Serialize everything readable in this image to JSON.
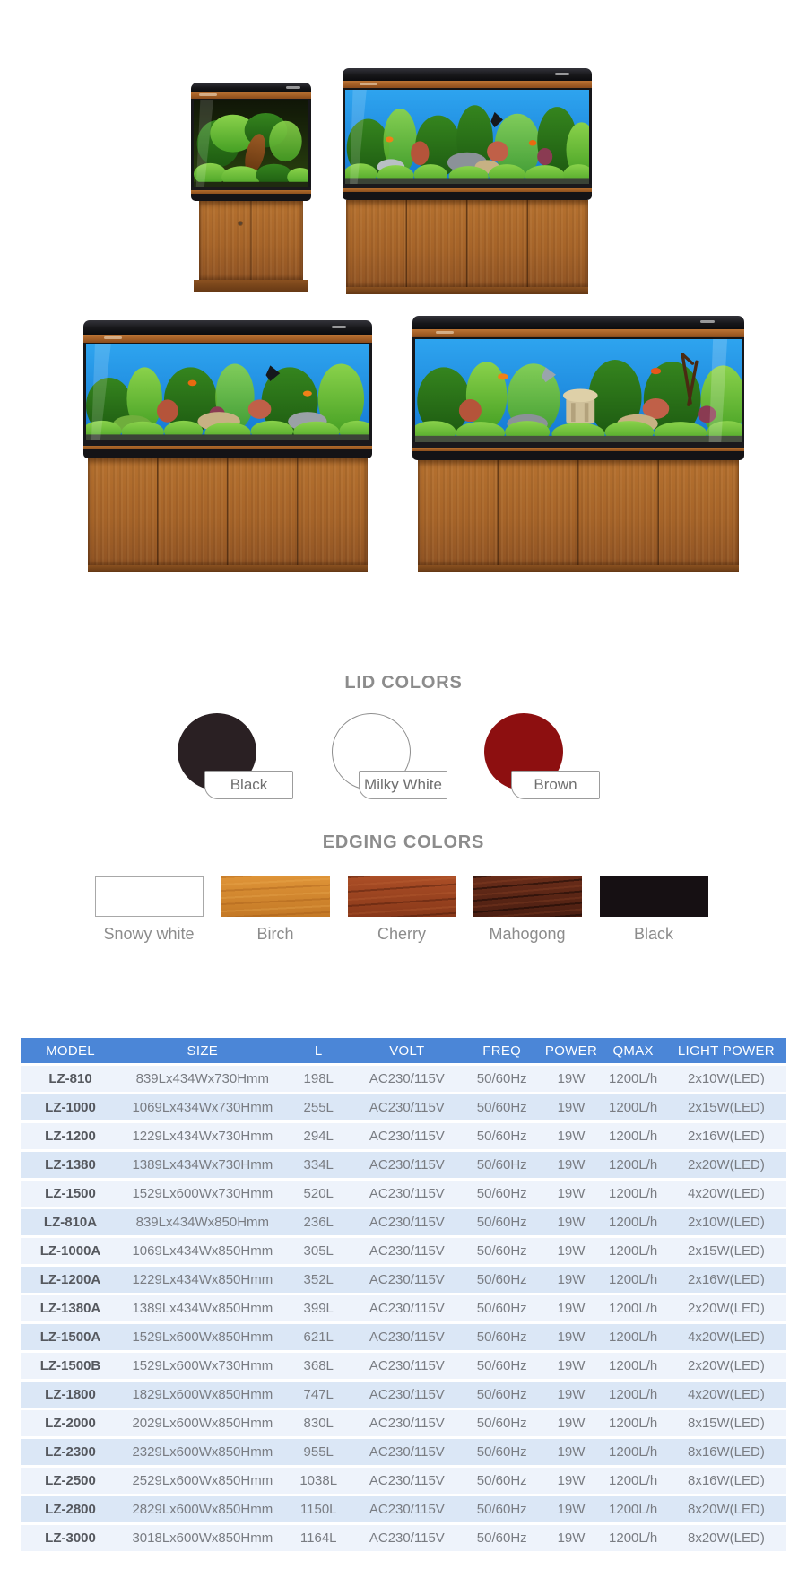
{
  "lid_colors": {
    "title": "LID COLORS",
    "items": [
      {
        "label": "Black",
        "hex": "#2a2023"
      },
      {
        "label": "Milky White",
        "hex": "#ffffff"
      },
      {
        "label": "Brown",
        "hex": "#8d0f10"
      }
    ]
  },
  "edging_colors": {
    "title": "EDGING COLORS",
    "items": [
      {
        "label": "Snowy white",
        "hex": "#ffffff"
      },
      {
        "label": "Birch",
        "hex": "#d4862c"
      },
      {
        "label": "Cherry",
        "hex": "#a3451f"
      },
      {
        "label": "Mahogong",
        "hex": "#662a18"
      },
      {
        "label": "Black",
        "hex": "#161013"
      }
    ]
  },
  "spec_table": {
    "colors": {
      "header_bg": "#4b86d7",
      "row_light": "#eef3fb",
      "row_alt": "#dbe7f6"
    },
    "columns": [
      "MODEL",
      "SIZE",
      "L",
      "VOLT",
      "FREQ",
      "POWER",
      "QMAX",
      "LIGHT POWER"
    ],
    "rows": [
      [
        "LZ-810",
        "839Lx434Wx730Hmm",
        "198L",
        "AC230/115V",
        "50/60Hz",
        "19W",
        "1200L/h",
        "2x10W(LED)"
      ],
      [
        "LZ-1000",
        "1069Lx434Wx730Hmm",
        "255L",
        "AC230/115V",
        "50/60Hz",
        "19W",
        "1200L/h",
        "2x15W(LED)"
      ],
      [
        "LZ-1200",
        "1229Lx434Wx730Hmm",
        "294L",
        "AC230/115V",
        "50/60Hz",
        "19W",
        "1200L/h",
        "2x16W(LED)"
      ],
      [
        "LZ-1380",
        "1389Lx434Wx730Hmm",
        "334L",
        "AC230/115V",
        "50/60Hz",
        "19W",
        "1200L/h",
        "2x20W(LED)"
      ],
      [
        "LZ-1500",
        "1529Lx600Wx730Hmm",
        "520L",
        "AC230/115V",
        "50/60Hz",
        "19W",
        "1200L/h",
        "4x20W(LED)"
      ],
      [
        "LZ-810A",
        "839Lx434Wx850Hmm",
        "236L",
        "AC230/115V",
        "50/60Hz",
        "19W",
        "1200L/h",
        "2x10W(LED)"
      ],
      [
        "LZ-1000A",
        "1069Lx434Wx850Hmm",
        "305L",
        "AC230/115V",
        "50/60Hz",
        "19W",
        "1200L/h",
        "2x15W(LED)"
      ],
      [
        "LZ-1200A",
        "1229Lx434Wx850Hmm",
        "352L",
        "AC230/115V",
        "50/60Hz",
        "19W",
        "1200L/h",
        "2x16W(LED)"
      ],
      [
        "LZ-1380A",
        "1389Lx434Wx850Hmm",
        "399L",
        "AC230/115V",
        "50/60Hz",
        "19W",
        "1200L/h",
        "2x20W(LED)"
      ],
      [
        "LZ-1500A",
        "1529Lx600Wx850Hmm",
        "621L",
        "AC230/115V",
        "50/60Hz",
        "19W",
        "1200L/h",
        "4x20W(LED)"
      ],
      [
        "LZ-1500B",
        "1529Lx600Wx730Hmm",
        "368L",
        "AC230/115V",
        "50/60Hz",
        "19W",
        "1200L/h",
        "2x20W(LED)"
      ],
      [
        "LZ-1800",
        "1829Lx600Wx850Hmm",
        "747L",
        "AC230/115V",
        "50/60Hz",
        "19W",
        "1200L/h",
        "4x20W(LED)"
      ],
      [
        "LZ-2000",
        "2029Lx600Wx850Hmm",
        "830L",
        "AC230/115V",
        "50/60Hz",
        "19W",
        "1200L/h",
        "8x15W(LED)"
      ],
      [
        "LZ-2300",
        "2329Lx600Wx850Hmm",
        "955L",
        "AC230/115V",
        "50/60Hz",
        "19W",
        "1200L/h",
        "8x16W(LED)"
      ],
      [
        "LZ-2500",
        "2529Lx600Wx850Hmm",
        "1038L",
        "AC230/115V",
        "50/60Hz",
        "19W",
        "1200L/h",
        "8x16W(LED)"
      ],
      [
        "LZ-2800",
        "2829Lx600Wx850Hmm",
        "1150L",
        "AC230/115V",
        "50/60Hz",
        "19W",
        "1200L/h",
        "8x20W(LED)"
      ],
      [
        "LZ-3000",
        "3018Lx600Wx850Hmm",
        "1164L",
        "AC230/115V",
        "50/60Hz",
        "19W",
        "1200L/h",
        "8x20W(LED)"
      ]
    ]
  }
}
